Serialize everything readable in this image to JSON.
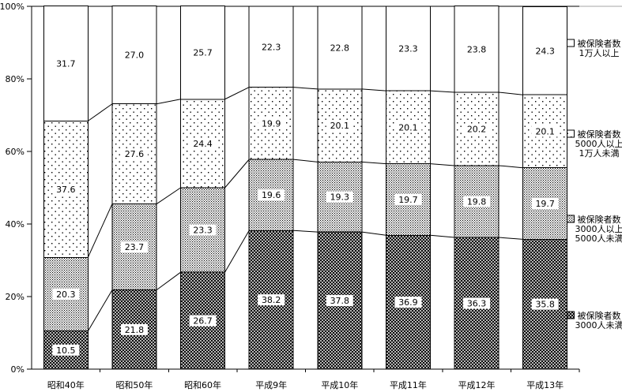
{
  "colors": {
    "ink": "#000000",
    "background": "#ffffff",
    "frame_grey": "#a6a6a6"
  },
  "chart_data": {
    "type": "bar",
    "variant": "stacked-100-percent-column",
    "title": "",
    "xlabel": "",
    "ylabel": "",
    "grid": false,
    "legend_position": "right",
    "series_lines": true,
    "ylim": [
      0,
      100
    ],
    "y_axis": {
      "tick_labels": [
        "0%",
        "20%",
        "40%",
        "60%",
        "80%",
        "100%"
      ],
      "tick_values": [
        0,
        20,
        40,
        60,
        80,
        100
      ]
    },
    "categories": [
      "昭和40年",
      "昭和50年",
      "昭和60年",
      "平成9年",
      "平成10年",
      "平成11年",
      "平成12年",
      "平成13年"
    ],
    "series": [
      {
        "name": "被保険者数 3000人未満",
        "legend_lines": [
          "被保険者数",
          "3000人未満"
        ],
        "pattern": "crosshatch",
        "values": [
          "10.5",
          "21.8",
          "26.7",
          "38.2",
          "37.8",
          "36.9",
          "36.3",
          "35.8"
        ]
      },
      {
        "name": "被保険者数 3000人以上 5000人未満",
        "legend_lines": [
          "被保険者数",
          "3000人以上",
          "5000人未満"
        ],
        "pattern": "dense-dots",
        "values": [
          "20.3",
          "23.7",
          "23.3",
          "19.6",
          "19.3",
          "19.7",
          "19.8",
          "19.7"
        ]
      },
      {
        "name": "被保険者数 5000人以上 1万人未満",
        "legend_lines": [
          "被保険者数",
          "5000人以上",
          "1万人未満"
        ],
        "pattern": "sparse-dots",
        "values": [
          "37.6",
          "27.6",
          "24.4",
          "19.9",
          "20.1",
          "20.1",
          "20.2",
          "20.1"
        ]
      },
      {
        "name": "被保険者数 1万人以上",
        "legend_lines": [
          "被保険者数",
          "1万人以上"
        ],
        "pattern": "white",
        "values": [
          "31.7",
          "27.0",
          "25.7",
          "22.3",
          "22.8",
          "23.3",
          "23.8",
          "24.3"
        ]
      }
    ]
  }
}
